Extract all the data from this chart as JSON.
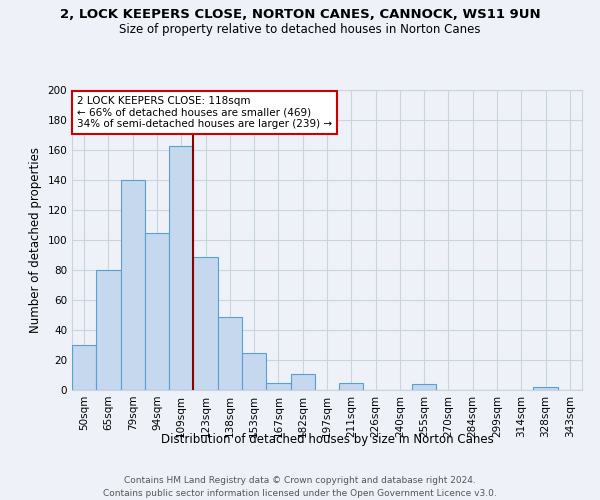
{
  "title1": "2, LOCK KEEPERS CLOSE, NORTON CANES, CANNOCK, WS11 9UN",
  "title2": "Size of property relative to detached houses in Norton Canes",
  "xlabel": "Distribution of detached houses by size in Norton Canes",
  "ylabel": "Number of detached properties",
  "bar_labels": [
    "50sqm",
    "65sqm",
    "79sqm",
    "94sqm",
    "109sqm",
    "123sqm",
    "138sqm",
    "153sqm",
    "167sqm",
    "182sqm",
    "197sqm",
    "211sqm",
    "226sqm",
    "240sqm",
    "255sqm",
    "270sqm",
    "284sqm",
    "299sqm",
    "314sqm",
    "328sqm",
    "343sqm"
  ],
  "bar_values": [
    30,
    80,
    140,
    105,
    163,
    89,
    49,
    25,
    5,
    11,
    0,
    5,
    0,
    0,
    4,
    0,
    0,
    0,
    0,
    2,
    0
  ],
  "bar_color": "#c5d8ed",
  "bar_edge_color": "#5a9fd4",
  "vline_x_idx": 4.5,
  "vline_color": "#8b0000",
  "annotation_title": "2 LOCK KEEPERS CLOSE: 118sqm",
  "annotation_line1": "← 66% of detached houses are smaller (469)",
  "annotation_line2": "34% of semi-detached houses are larger (239) →",
  "annotation_box_color": "#ffffff",
  "annotation_box_edge": "#cc0000",
  "ylim": [
    0,
    200
  ],
  "yticks": [
    0,
    20,
    40,
    60,
    80,
    100,
    120,
    140,
    160,
    180,
    200
  ],
  "grid_color": "#c8d4e0",
  "bg_color": "#eef2f8",
  "footer1": "Contains HM Land Registry data © Crown copyright and database right 2024.",
  "footer2": "Contains public sector information licensed under the Open Government Licence v3.0."
}
